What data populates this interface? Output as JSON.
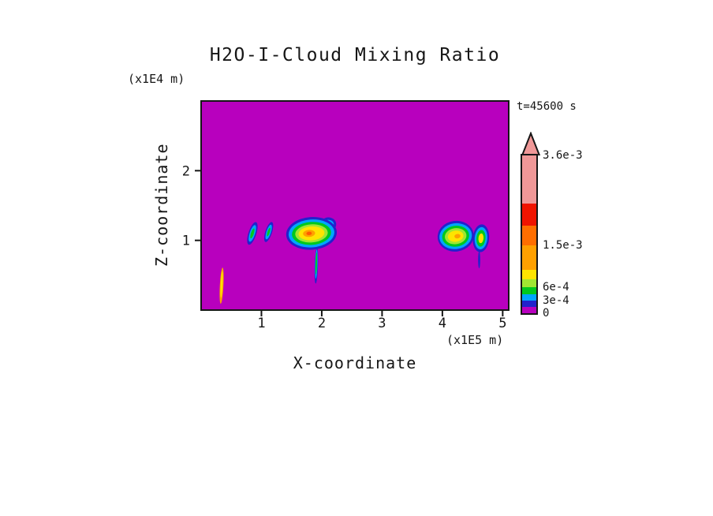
{
  "chart_data": {
    "type": "heatmap",
    "title": "H2O-I-Cloud Mixing Ratio",
    "xlabel": "X-coordinate",
    "ylabel": "Z-coordinate",
    "x_unit_label": "(x1E5 m)",
    "z_unit_label": "(x1E4 m)",
    "time_label": "t=45600 s",
    "x_range": [
      0,
      5.1
    ],
    "z_range": [
      0,
      3.0
    ],
    "x_ticks": [
      1,
      2,
      3,
      4,
      5
    ],
    "z_ticks": [
      1,
      2
    ],
    "background_value": 0,
    "background_color": "#B800BE",
    "labeled_levels": [
      "0",
      "3e-4",
      "6e-4",
      "1.5e-3",
      "3.6e-3"
    ],
    "colorbar": {
      "arrow_color": "#F09898",
      "segments": [
        {
          "color": "#B800BE",
          "h": 8
        },
        {
          "color": "#2222CC",
          "h": 8
        },
        {
          "color": "#00A6FF",
          "h": 8
        },
        {
          "color": "#00C81E",
          "h": 9
        },
        {
          "color": "#A0E632",
          "h": 10
        },
        {
          "color": "#FFE400",
          "h": 12
        },
        {
          "color": "#FFA000",
          "h": 31
        },
        {
          "color": "#FF6E00",
          "h": 25
        },
        {
          "color": "#F01400",
          "h": 28
        },
        {
          "color": "#F09898",
          "h": 61
        }
      ],
      "labels": [
        {
          "text": "0",
          "offset": 0
        },
        {
          "text": "3e-4",
          "offset": 16
        },
        {
          "text": "6e-4",
          "offset": 33
        },
        {
          "text": "1.5e-3",
          "offset": 86
        },
        {
          "text": "3.6e-3",
          "offset": 200
        }
      ]
    },
    "features": [
      {
        "name": "orange-streak",
        "x": 0.34,
        "z": 0.35,
        "rot": 3,
        "layers": [
          {
            "color": "#FFA000",
            "rx": 0.03,
            "rz": 0.26
          },
          {
            "color": "#FFE400",
            "rx": 0.016,
            "rz": 0.19,
            "dz": 0.02
          }
        ]
      },
      {
        "name": "wisp-a",
        "x": 0.85,
        "z": 1.1,
        "rot": 18,
        "layers": [
          {
            "color": "#2222CC",
            "rx": 0.065,
            "rz": 0.17
          },
          {
            "color": "#00A6FF",
            "rx": 0.045,
            "rz": 0.125
          },
          {
            "color": "#00C81E",
            "rx": 0.025,
            "rz": 0.075
          }
        ]
      },
      {
        "name": "wisp-b",
        "x": 1.12,
        "z": 1.12,
        "rot": 18,
        "layers": [
          {
            "color": "#2222CC",
            "rx": 0.055,
            "rz": 0.15
          },
          {
            "color": "#00A6FF",
            "rx": 0.038,
            "rz": 0.11
          },
          {
            "color": "#00C81E",
            "rx": 0.02,
            "rz": 0.065
          }
        ]
      },
      {
        "name": "main-cloud",
        "x": 1.83,
        "z": 1.1,
        "rot": -4,
        "layers": [
          {
            "color": "#2222CC",
            "rx": 0.13,
            "rz": 0.1,
            "dx": 0.28,
            "dz": 0.13
          },
          {
            "color": "#00A6FF",
            "rx": 0.09,
            "rz": 0.065,
            "dx": 0.28,
            "dz": 0.13
          },
          {
            "color": "#2222CC",
            "rx": 0.42,
            "rz": 0.235
          },
          {
            "color": "#00A6FF",
            "rx": 0.38,
            "rz": 0.2
          },
          {
            "color": "#00C81E",
            "rx": 0.325,
            "rz": 0.165
          },
          {
            "color": "#A0E632",
            "rx": 0.27,
            "rz": 0.13
          },
          {
            "color": "#FFE400",
            "rx": 0.215,
            "rz": 0.1
          },
          {
            "color": "#FFA000",
            "rx": 0.1,
            "rz": 0.05,
            "dx": -0.04
          },
          {
            "color": "#FF5A00",
            "rx": 0.045,
            "rz": 0.025,
            "dx": -0.04
          }
        ]
      },
      {
        "name": "main-cloud-tail",
        "x": 1.91,
        "z": 0.64,
        "rot": 2,
        "layers": [
          {
            "color": "#2222CC",
            "rx": 0.028,
            "rz": 0.26
          },
          {
            "color": "#00A6FF",
            "rx": 0.02,
            "rz": 0.21,
            "dz": 0.02
          },
          {
            "color": "#00C81E",
            "rx": 0.012,
            "rz": 0.16,
            "dz": 0.03
          }
        ]
      },
      {
        "name": "cloud-b",
        "x": 4.22,
        "z": 1.06,
        "rot": -8,
        "layers": [
          {
            "color": "#2222CC",
            "rx": 0.3,
            "rz": 0.22
          },
          {
            "color": "#00A6FF",
            "rx": 0.27,
            "rz": 0.185
          },
          {
            "color": "#00C81E",
            "rx": 0.225,
            "rz": 0.15
          },
          {
            "color": "#A0E632",
            "rx": 0.18,
            "rz": 0.115
          },
          {
            "color": "#FFE400",
            "rx": 0.13,
            "rz": 0.08
          },
          {
            "color": "#FFA000",
            "rx": 0.05,
            "rz": 0.032,
            "dx": 0.03
          }
        ]
      },
      {
        "name": "cloud-c",
        "x": 4.64,
        "z": 1.03,
        "rot": 5,
        "layers": [
          {
            "color": "#2222CC",
            "rx": 0.135,
            "rz": 0.2
          },
          {
            "color": "#00A6FF",
            "rx": 0.105,
            "rz": 0.16
          },
          {
            "color": "#00C81E",
            "rx": 0.075,
            "rz": 0.12
          },
          {
            "color": "#FFE400",
            "rx": 0.042,
            "rz": 0.07
          }
        ]
      },
      {
        "name": "cloud-c-tail",
        "x": 4.61,
        "z": 0.72,
        "rot": 0,
        "layers": [
          {
            "color": "#2222CC",
            "rx": 0.018,
            "rz": 0.12
          }
        ]
      }
    ]
  }
}
